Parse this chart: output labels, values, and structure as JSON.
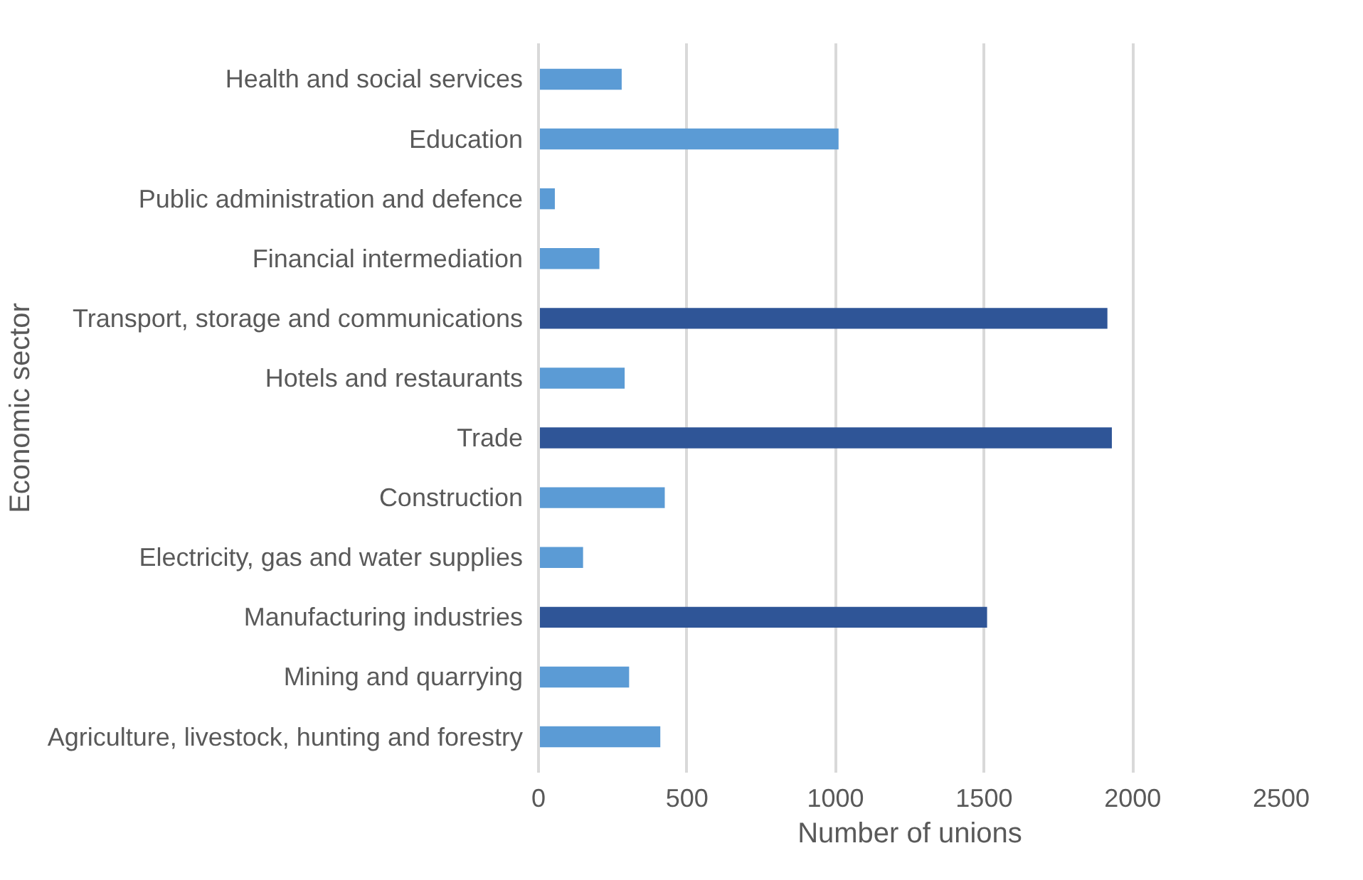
{
  "chart_data": {
    "type": "bar",
    "orientation": "horizontal",
    "xlabel": "Number of unions",
    "ylabel": "Economic sector",
    "categories": [
      "Health and social services",
      "Education",
      "Public administration and defence",
      "Financial intermediation",
      "Transport, storage and communications",
      "Hotels and restaurants",
      "Trade",
      "Construction",
      "Electricity, gas and water supplies",
      "Manufacturing industries",
      "Mining and quarrying",
      "Agriculture, livestock, hunting and forestry"
    ],
    "values": [
      280,
      1010,
      55,
      205,
      1915,
      290,
      1930,
      425,
      150,
      1510,
      305,
      410
    ],
    "colors": [
      "#5b9bd5",
      "#5b9bd5",
      "#5b9bd5",
      "#5b9bd5",
      "#2f5597",
      "#5b9bd5",
      "#2f5597",
      "#5b9bd5",
      "#5b9bd5",
      "#2f5597",
      "#5b9bd5",
      "#5b9bd5"
    ],
    "xlim": [
      0,
      2500
    ],
    "xticks": [
      0,
      500,
      1000,
      1500,
      2000,
      2500
    ],
    "grid": "x"
  }
}
